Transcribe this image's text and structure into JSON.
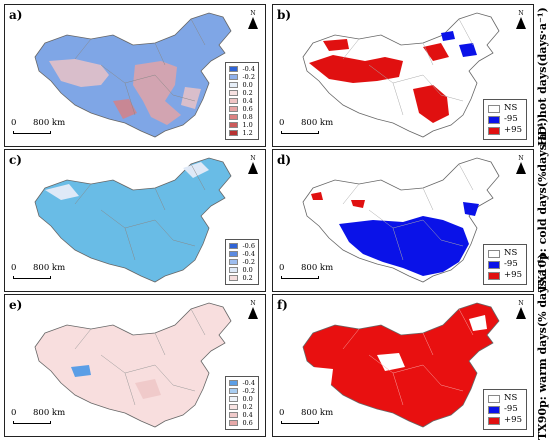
{
  "panels": [
    {
      "id": "a",
      "label": "a)",
      "scale": {
        "zero": "0",
        "dist": "800 km"
      },
      "north": "N",
      "legend": [
        {
          "label": "-0.4",
          "color": "#2f64d6"
        },
        {
          "label": "-0.2",
          "color": "#8fb0ea"
        },
        {
          "label": "0.0",
          "color": "#e6eef8"
        },
        {
          "label": "0.2",
          "color": "#f7e1e1"
        },
        {
          "label": "0.4",
          "color": "#f0c4c4"
        },
        {
          "label": "0.6",
          "color": "#e7a4a4"
        },
        {
          "label": "0.8",
          "color": "#db8080"
        },
        {
          "label": "1.0",
          "color": "#cc5a5a"
        },
        {
          "label": "1.2",
          "color": "#b83232"
        }
      ],
      "fill": "#7fa6e6"
    },
    {
      "id": "b",
      "label": "b)",
      "scale": {
        "zero": "0",
        "dist": "800 km"
      },
      "north": "N",
      "legend": [
        {
          "label": "NS",
          "color": "#ffffff"
        },
        {
          "label": "-95",
          "color": "#0a12e8"
        },
        {
          "label": "+95",
          "color": "#e01010"
        }
      ],
      "fill": "#ffffff"
    },
    {
      "id": "c",
      "label": "c)",
      "scale": {
        "zero": "0",
        "dist": "800 km"
      },
      "north": "N",
      "legend": [
        {
          "label": "-0.6",
          "color": "#2f64d6"
        },
        {
          "label": "-0.4",
          "color": "#5c8ae0"
        },
        {
          "label": "-0.2",
          "color": "#9dbdef"
        },
        {
          "label": "0.0",
          "color": "#dfe9f7"
        },
        {
          "label": "0.2",
          "color": "#f5dede"
        }
      ],
      "fill": "#69bce6"
    },
    {
      "id": "d",
      "label": "d)",
      "scale": {
        "zero": "0",
        "dist": "800 km"
      },
      "north": "N",
      "legend": [
        {
          "label": "NS",
          "color": "#ffffff"
        },
        {
          "label": "-95",
          "color": "#0a12e8"
        },
        {
          "label": "+95",
          "color": "#e01010"
        }
      ],
      "fill": "#ffffff"
    },
    {
      "id": "e",
      "label": "e)",
      "scale": {
        "zero": "0",
        "dist": "800 km"
      },
      "north": "N",
      "legend": [
        {
          "label": "-0.4",
          "color": "#5b9ee6"
        },
        {
          "label": "-0.2",
          "color": "#a8cdf2"
        },
        {
          "label": "0.0",
          "color": "#eef3fa"
        },
        {
          "label": "0.2",
          "color": "#f8e3e3"
        },
        {
          "label": "0.4",
          "color": "#f0caca"
        },
        {
          "label": "0.6",
          "color": "#e6a8a8"
        }
      ],
      "fill": "#f8dede"
    },
    {
      "id": "f",
      "label": "f)",
      "scale": {
        "zero": "0",
        "dist": "800 km"
      },
      "north": "N",
      "legend": [
        {
          "label": "NS",
          "color": "#ffffff"
        },
        {
          "label": "-95",
          "color": "#0a12e8"
        },
        {
          "label": "+95",
          "color": "#e01010"
        }
      ],
      "fill": "#e81010"
    }
  ],
  "side_labels": {
    "hd": "HD: hot days(days·a⁻¹)",
    "tx10": "TX10p: cold days(%days·a⁻¹)",
    "tx90": "TX90p: warm days(% days·a⁻¹)"
  }
}
